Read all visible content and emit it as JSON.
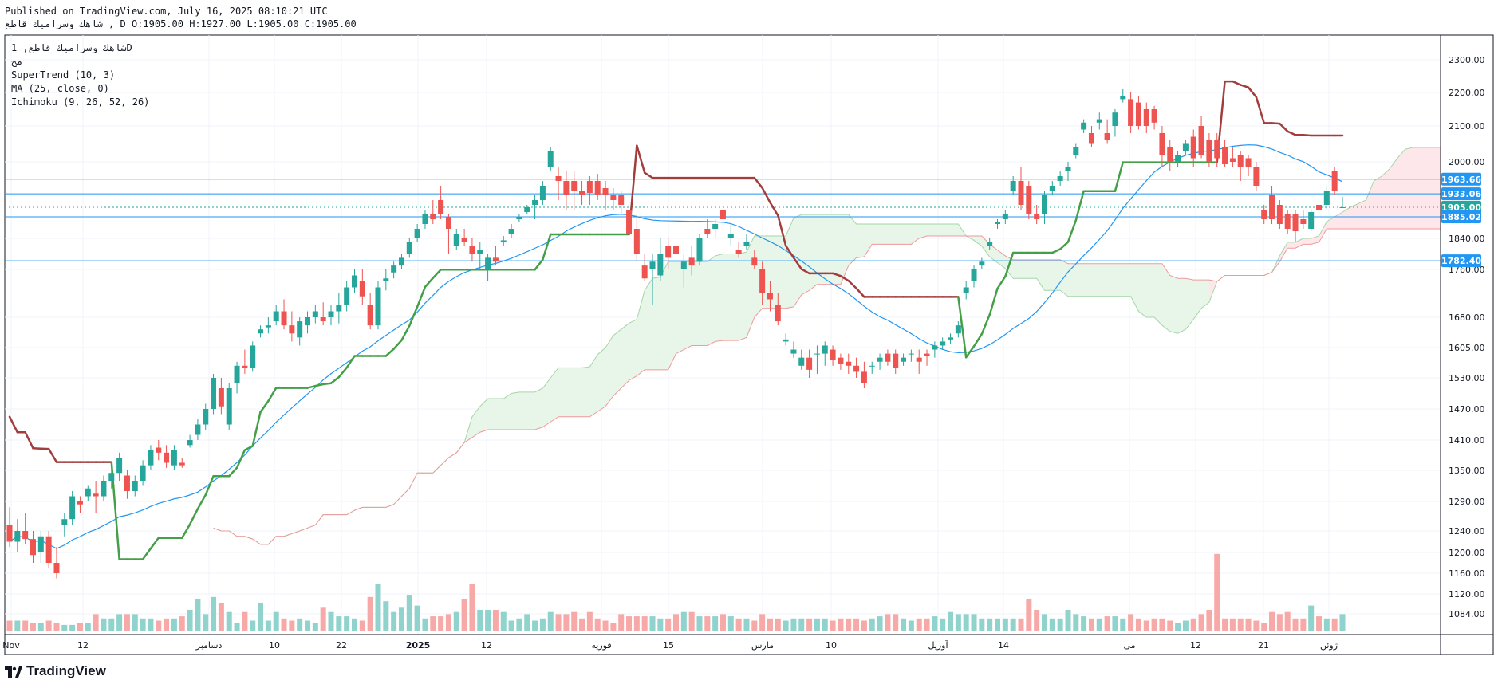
{
  "header": {
    "published": "Published on TradingView.com, July 16, 2025 08:10:21 UTC",
    "symbol_line": "شاهك وسرامیك قاطع , D O:1905.00 H:1927.00 L:1905.00 C:1905.00"
  },
  "legend": {
    "title": "شاهك وسرامیك قاطع, 1D",
    "subtitle": "مح",
    "indicators": [
      "SuperTrend (10, 3)",
      "MA (25, close, 0)",
      "Ichimoku (9, 26, 52, 26)"
    ]
  },
  "logo": {
    "text": "TradingView",
    "icon": "tradingview-logo-icon"
  },
  "colors": {
    "up": "#26a69a",
    "down": "#ef5350",
    "ma": "#2196f3",
    "supertrend_up": "#43a047",
    "supertrend_down": "#a33d3d",
    "cloud_up": "#a5d6a7",
    "cloud_down": "#f8bbd0",
    "hline": "#2196f3"
  },
  "chart_data": {
    "type": "candlestick",
    "timeframe": "1D",
    "y_ticks": [
      1084,
      1120,
      1160,
      1200,
      1240,
      1290,
      1350,
      1410,
      1470,
      1530,
      1605,
      1680,
      1760,
      1840,
      2000,
      2100,
      2200,
      2300
    ],
    "x_ticks": [
      "Nov",
      "12",
      "دسامبر",
      "10",
      "22",
      "2025",
      "12",
      "فوریه",
      "15",
      "مارس",
      "10",
      "آوریل",
      "14",
      "می",
      "12",
      "21",
      "ژوئن"
    ],
    "horizontal_levels": [
      1963.66,
      1933.06,
      1905.0,
      1885.02,
      1782.4
    ],
    "price_labels": [
      {
        "value": 1963.66,
        "text": "1963.66",
        "color": "#2196f3"
      },
      {
        "value": 1933.06,
        "text": "1933.06",
        "color": "#2196f3"
      },
      {
        "value": 1905.0,
        "text": "1905.00",
        "color": "#26a69a"
      },
      {
        "value": 1885.02,
        "text": "1885.02",
        "color": "#2196f3"
      },
      {
        "value": 1782.4,
        "text": "1782.40",
        "color": "#2196f3"
      }
    ],
    "last_ohlc": {
      "open": 1905.0,
      "high": 1927.0,
      "low": 1905.0,
      "close": 1905.0
    },
    "candles": [
      [
        1250,
        1280,
        1210,
        1220
      ],
      [
        1220,
        1260,
        1200,
        1240
      ],
      [
        1240,
        1270,
        1215,
        1225
      ],
      [
        1225,
        1240,
        1180,
        1195
      ],
      [
        1200,
        1240,
        1180,
        1230
      ],
      [
        1230,
        1240,
        1170,
        1180
      ],
      [
        1180,
        1210,
        1150,
        1160
      ],
      [
        1250,
        1270,
        1230,
        1260
      ],
      [
        1260,
        1310,
        1250,
        1300
      ],
      [
        1290,
        1300,
        1270,
        1285
      ],
      [
        1300,
        1320,
        1290,
        1315
      ],
      [
        1305,
        1330,
        1270,
        1300
      ],
      [
        1300,
        1340,
        1290,
        1330
      ],
      [
        1330,
        1350,
        1315,
        1345
      ],
      [
        1345,
        1385,
        1330,
        1375
      ],
      [
        1340,
        1350,
        1295,
        1310
      ],
      [
        1310,
        1340,
        1300,
        1330
      ],
      [
        1330,
        1370,
        1320,
        1360
      ],
      [
        1360,
        1400,
        1350,
        1390
      ],
      [
        1395,
        1410,
        1370,
        1385
      ],
      [
        1385,
        1400,
        1355,
        1365
      ],
      [
        1360,
        1400,
        1350,
        1390
      ],
      [
        1365,
        1375,
        1355,
        1360
      ],
      [
        1400,
        1420,
        1395,
        1410
      ],
      [
        1420,
        1450,
        1410,
        1440
      ],
      [
        1440,
        1480,
        1430,
        1470
      ],
      [
        1470,
        1540,
        1460,
        1530
      ],
      [
        1510,
        1530,
        1460,
        1475
      ],
      [
        1440,
        1520,
        1430,
        1510
      ],
      [
        1520,
        1570,
        1500,
        1560
      ],
      [
        1560,
        1600,
        1540,
        1555
      ],
      [
        1555,
        1620,
        1545,
        1610
      ],
      [
        1640,
        1660,
        1630,
        1650
      ],
      [
        1655,
        1680,
        1640,
        1660
      ],
      [
        1670,
        1700,
        1660,
        1690
      ],
      [
        1690,
        1710,
        1650,
        1660
      ],
      [
        1660,
        1690,
        1620,
        1640
      ],
      [
        1630,
        1680,
        1610,
        1670
      ],
      [
        1660,
        1690,
        1640,
        1680
      ],
      [
        1680,
        1700,
        1665,
        1690
      ],
      [
        1680,
        1705,
        1660,
        1670
      ],
      [
        1680,
        1700,
        1660,
        1690
      ],
      [
        1690,
        1720,
        1665,
        1700
      ],
      [
        1700,
        1740,
        1690,
        1730
      ],
      [
        1730,
        1760,
        1720,
        1750
      ],
      [
        1740,
        1760,
        1700,
        1715
      ],
      [
        1700,
        1720,
        1650,
        1660
      ],
      [
        1660,
        1740,
        1650,
        1730
      ],
      [
        1740,
        1760,
        1725,
        1745
      ],
      [
        1755,
        1780,
        1745,
        1770
      ],
      [
        1770,
        1800,
        1760,
        1790
      ],
      [
        1800,
        1840,
        1790,
        1830
      ],
      [
        1840,
        1870,
        1830,
        1860
      ],
      [
        1870,
        1900,
        1860,
        1890
      ],
      [
        1890,
        1920,
        1870,
        1880
      ],
      [
        1920,
        1950,
        1880,
        1890
      ],
      [
        1885,
        1890,
        1800,
        1860
      ],
      [
        1820,
        1860,
        1810,
        1850
      ],
      [
        1840,
        1860,
        1820,
        1830
      ],
      [
        1820,
        1840,
        1780,
        1800
      ],
      [
        1800,
        1830,
        1760,
        1810
      ],
      [
        1760,
        1800,
        1740,
        1790
      ],
      [
        1790,
        1820,
        1770,
        1780
      ],
      [
        1830,
        1845,
        1820,
        1835
      ],
      [
        1850,
        1870,
        1840,
        1860
      ],
      [
        1880,
        1890,
        1875,
        1885
      ],
      [
        1895,
        1910,
        1890,
        1905
      ],
      [
        1910,
        1930,
        1880,
        1920
      ],
      [
        1920,
        1960,
        1910,
        1950
      ],
      [
        1990,
        2040,
        1980,
        2030
      ],
      [
        1970,
        1990,
        1920,
        1960
      ],
      [
        1960,
        1980,
        1900,
        1930
      ],
      [
        1960,
        1980,
        1900,
        1940
      ],
      [
        1940,
        1960,
        1910,
        1930
      ],
      [
        1960,
        1970,
        1910,
        1935
      ],
      [
        1960,
        1975,
        1920,
        1930
      ],
      [
        1945,
        1960,
        1900,
        1930
      ],
      [
        1930,
        1945,
        1900,
        1920
      ],
      [
        1930,
        1940,
        1890,
        1910
      ],
      [
        1900,
        1960,
        1830,
        1850
      ],
      [
        1860,
        1890,
        1780,
        1800
      ],
      [
        1770,
        1800,
        1740,
        1745
      ],
      [
        1760,
        1800,
        1700,
        1780
      ],
      [
        1750,
        1840,
        1740,
        1800
      ],
      [
        1820,
        1840,
        1760,
        1790
      ],
      [
        1820,
        1880,
        1760,
        1800
      ],
      [
        1760,
        1800,
        1730,
        1780
      ],
      [
        1790,
        1820,
        1750,
        1770
      ],
      [
        1780,
        1850,
        1770,
        1840
      ],
      [
        1860,
        1880,
        1840,
        1850
      ],
      [
        1860,
        1880,
        1840,
        1870
      ],
      [
        1900,
        1920,
        1850,
        1880
      ],
      [
        1840,
        1870,
        1820,
        1850
      ],
      [
        1810,
        1830,
        1790,
        1800
      ],
      [
        1820,
        1850,
        1810,
        1830
      ],
      [
        1790,
        1810,
        1760,
        1770
      ],
      [
        1760,
        1780,
        1700,
        1720
      ],
      [
        1720,
        1740,
        1690,
        1710
      ],
      [
        1700,
        1720,
        1660,
        1670
      ],
      [
        1620,
        1640,
        1610,
        1625
      ],
      [
        1590,
        1620,
        1580,
        1600
      ],
      [
        1560,
        1600,
        1550,
        1580
      ],
      [
        1580,
        1600,
        1530,
        1550
      ],
      [
        1590,
        1610,
        1540,
        1590
      ],
      [
        1590,
        1620,
        1560,
        1610
      ],
      [
        1600,
        1610,
        1560,
        1575
      ],
      [
        1580,
        1590,
        1550,
        1565
      ],
      [
        1570,
        1590,
        1540,
        1560
      ],
      [
        1560,
        1580,
        1530,
        1545
      ],
      [
        1545,
        1570,
        1510,
        1520
      ],
      [
        1560,
        1570,
        1540,
        1560
      ],
      [
        1570,
        1590,
        1550,
        1580
      ],
      [
        1590,
        1600,
        1560,
        1570
      ],
      [
        1590,
        1600,
        1540,
        1555
      ],
      [
        1570,
        1590,
        1560,
        1580
      ],
      [
        1590,
        1600,
        1570,
        1590
      ],
      [
        1580,
        1600,
        1540,
        1570
      ],
      [
        1590,
        1600,
        1560,
        1585
      ],
      [
        1600,
        1620,
        1580,
        1610
      ],
      [
        1610,
        1630,
        1600,
        1620
      ],
      [
        1625,
        1640,
        1615,
        1630
      ],
      [
        1640,
        1670,
        1630,
        1660
      ],
      [
        1720,
        1740,
        1710,
        1730
      ],
      [
        1740,
        1770,
        1730,
        1760
      ],
      [
        1770,
        1790,
        1760,
        1780
      ],
      [
        1820,
        1840,
        1810,
        1830
      ],
      [
        1870,
        1880,
        1860,
        1875
      ],
      [
        1880,
        1900,
        1870,
        1890
      ],
      [
        1940,
        1970,
        1930,
        1960
      ],
      [
        1960,
        1990,
        1900,
        1910
      ],
      [
        1950,
        1960,
        1880,
        1890
      ],
      [
        1890,
        1910,
        1870,
        1880
      ],
      [
        1890,
        1940,
        1870,
        1930
      ],
      [
        1940,
        1960,
        1930,
        1950
      ],
      [
        1960,
        1980,
        1950,
        1970
      ],
      [
        1980,
        2000,
        1960,
        1990
      ],
      [
        2020,
        2050,
        2010,
        2040
      ],
      [
        2090,
        2120,
        2080,
        2110
      ],
      [
        2080,
        2100,
        2040,
        2050
      ],
      [
        2110,
        2140,
        2090,
        2120
      ],
      [
        2080,
        2120,
        2050,
        2060
      ],
      [
        2100,
        2150,
        2070,
        2140
      ],
      [
        2180,
        2210,
        2170,
        2190
      ],
      [
        2180,
        2200,
        2080,
        2100
      ],
      [
        2170,
        2190,
        2090,
        2100
      ],
      [
        2150,
        2170,
        2080,
        2100
      ],
      [
        2150,
        2160,
        2090,
        2110
      ],
      [
        2080,
        2100,
        1990,
        2020
      ],
      [
        2040,
        2060,
        1980,
        2000
      ],
      [
        2000,
        2030,
        1990,
        2020
      ],
      [
        2030,
        2060,
        2020,
        2050
      ],
      [
        2070,
        2090,
        1990,
        2010
      ],
      [
        2100,
        2130,
        2010,
        2020
      ],
      [
        2060,
        2080,
        1990,
        2000
      ],
      [
        2060,
        2080,
        1990,
        2010
      ],
      [
        2040,
        2060,
        1990,
        1995
      ],
      [
        2010,
        2040,
        1990,
        2000
      ],
      [
        2020,
        2030,
        1960,
        1990
      ],
      [
        2010,
        2020,
        1970,
        1990
      ],
      [
        1990,
        2000,
        1940,
        1950
      ],
      [
        1900,
        1910,
        1870,
        1880
      ],
      [
        1930,
        1950,
        1870,
        1880
      ],
      [
        1910,
        1920,
        1860,
        1870
      ],
      [
        1890,
        1900,
        1850,
        1860
      ],
      [
        1890,
        1900,
        1830,
        1855
      ],
      [
        1880,
        1900,
        1860,
        1870
      ],
      [
        1860,
        1900,
        1855,
        1895
      ],
      [
        1910,
        1920,
        1880,
        1900
      ],
      [
        1910,
        1950,
        1900,
        1940
      ],
      [
        1980,
        1990,
        1930,
        1940
      ],
      [
        1905,
        1927,
        1905,
        1905
      ]
    ],
    "volume_scale_max": 100,
    "volumes": [
      5,
      5,
      5,
      4,
      4,
      5,
      4,
      3,
      3,
      4,
      4,
      8,
      6,
      6,
      8,
      8,
      8,
      6,
      6,
      5,
      6,
      6,
      7,
      10,
      15,
      8,
      16,
      13,
      9,
      4,
      9,
      5,
      13,
      5,
      9,
      6,
      5,
      6,
      5,
      4,
      11,
      9,
      7,
      7,
      6,
      5,
      16,
      22,
      14,
      9,
      11,
      17,
      12,
      6,
      7,
      7,
      8,
      9,
      15,
      22,
      10,
      10,
      10,
      9,
      5,
      6,
      8,
      5,
      6,
      9,
      8,
      8,
      9,
      6,
      9,
      6,
      5,
      4,
      8,
      7,
      7,
      7,
      7,
      6,
      6,
      8,
      9,
      9,
      7,
      7,
      7,
      8,
      7,
      6,
      6,
      5,
      8,
      6,
      6,
      5,
      6,
      6,
      6,
      6,
      6,
      5,
      6,
      6,
      6,
      5,
      6,
      7,
      8,
      8,
      6,
      5,
      6,
      6,
      7,
      6,
      9,
      8,
      8,
      8,
      6,
      6,
      6,
      6,
      6,
      6,
      15,
      10,
      8,
      6,
      6,
      10,
      8,
      7,
      6,
      6,
      7,
      7,
      6,
      8,
      6,
      5,
      6,
      6,
      5,
      4,
      5,
      6,
      8,
      10,
      36,
      6,
      6,
      6,
      6,
      5,
      4,
      9,
      8,
      9,
      6,
      6,
      12,
      7,
      6,
      6,
      8
    ]
  }
}
